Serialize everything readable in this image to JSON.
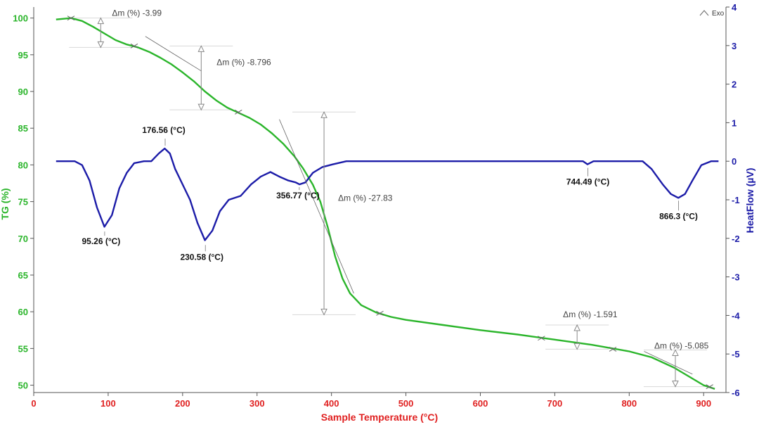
{
  "chart_data": {
    "type": "line",
    "xlabel": "Sample Temperature (°C)",
    "ylabel_left": "TG (%)",
    "ylabel_right": "HeatFlow (µV)",
    "legend_note": "Exo",
    "xlim": [
      0,
      930
    ],
    "ylim_left": [
      49,
      101.5
    ],
    "ylim_right": [
      -6,
      4
    ],
    "x_ticks": [
      "0",
      "100",
      "200",
      "300",
      "400",
      "500",
      "600",
      "700",
      "800",
      "900"
    ],
    "x_tick_values": [
      0,
      100,
      200,
      300,
      400,
      500,
      600,
      700,
      800,
      900
    ],
    "y_left_ticks": [
      "50",
      "55",
      "60",
      "65",
      "70",
      "75",
      "80",
      "85",
      "90",
      "95",
      "100"
    ],
    "y_left_tick_values": [
      50,
      55,
      60,
      65,
      70,
      75,
      80,
      85,
      90,
      95,
      100
    ],
    "y_right_ticks": [
      "4",
      "3",
      "2",
      "1",
      "0",
      "-1",
      "-2",
      "-3",
      "-4",
      "-5",
      "-6"
    ],
    "y_right_tick_values": [
      4,
      3,
      2,
      1,
      0,
      -1,
      -2,
      -3,
      -4,
      -5,
      -6
    ],
    "colors": {
      "tg": "#2bb52b",
      "hf": "#1c1ca8",
      "x_axis": "#e02020"
    },
    "series": [
      {
        "name": "TG (%)",
        "axis": "left",
        "points": [
          [
            30,
            99.8
          ],
          [
            50,
            100
          ],
          [
            65,
            99.6
          ],
          [
            80,
            98.8
          ],
          [
            95,
            97.9
          ],
          [
            110,
            97
          ],
          [
            125,
            96.4
          ],
          [
            140,
            96
          ],
          [
            155,
            95.4
          ],
          [
            170,
            94.6
          ],
          [
            185,
            93.7
          ],
          [
            200,
            92.6
          ],
          [
            215,
            91.4
          ],
          [
            230,
            90
          ],
          [
            245,
            88.8
          ],
          [
            260,
            87.8
          ],
          [
            275,
            87.1
          ],
          [
            290,
            86.4
          ],
          [
            305,
            85.5
          ],
          [
            320,
            84.3
          ],
          [
            335,
            82.9
          ],
          [
            350,
            81.2
          ],
          [
            362,
            79.5
          ],
          [
            375,
            77.3
          ],
          [
            385,
            75
          ],
          [
            395,
            71.5
          ],
          [
            405,
            67.5
          ],
          [
            415,
            64.5
          ],
          [
            425,
            62.5
          ],
          [
            440,
            60.9
          ],
          [
            460,
            59.9
          ],
          [
            480,
            59.3
          ],
          [
            500,
            58.9
          ],
          [
            550,
            58.2
          ],
          [
            600,
            57.5
          ],
          [
            650,
            56.9
          ],
          [
            700,
            56.2
          ],
          [
            750,
            55.5
          ],
          [
            800,
            54.6
          ],
          [
            830,
            53.8
          ],
          [
            860,
            52.4
          ],
          [
            880,
            51.2
          ],
          [
            900,
            50
          ],
          [
            915,
            49.5
          ]
        ]
      },
      {
        "name": "HeatFlow (µV)",
        "axis": "right",
        "points": [
          [
            30,
            0
          ],
          [
            55,
            0
          ],
          [
            65,
            -0.1
          ],
          [
            75,
            -0.5
          ],
          [
            85,
            -1.2
          ],
          [
            95,
            -1.7
          ],
          [
            105,
            -1.4
          ],
          [
            115,
            -0.7
          ],
          [
            125,
            -0.3
          ],
          [
            135,
            -0.05
          ],
          [
            148,
            0
          ],
          [
            158,
            0
          ],
          [
            168,
            0.2
          ],
          [
            176,
            0.33
          ],
          [
            183,
            0.2
          ],
          [
            190,
            -0.2
          ],
          [
            200,
            -0.6
          ],
          [
            210,
            -1
          ],
          [
            220,
            -1.6
          ],
          [
            230,
            -2.05
          ],
          [
            240,
            -1.8
          ],
          [
            250,
            -1.3
          ],
          [
            262,
            -1
          ],
          [
            278,
            -0.9
          ],
          [
            292,
            -0.6
          ],
          [
            305,
            -0.4
          ],
          [
            318,
            -0.28
          ],
          [
            330,
            -0.4
          ],
          [
            342,
            -0.5
          ],
          [
            352,
            -0.55
          ],
          [
            357,
            -0.6
          ],
          [
            365,
            -0.55
          ],
          [
            375,
            -0.3
          ],
          [
            388,
            -0.15
          ],
          [
            402,
            -0.08
          ],
          [
            420,
            0
          ],
          [
            500,
            0
          ],
          [
            720,
            0
          ],
          [
            738,
            0
          ],
          [
            744,
            -0.08
          ],
          [
            752,
            0
          ],
          [
            800,
            0
          ],
          [
            818,
            0
          ],
          [
            830,
            -0.2
          ],
          [
            845,
            -0.6
          ],
          [
            856,
            -0.85
          ],
          [
            866,
            -0.95
          ],
          [
            875,
            -0.85
          ],
          [
            885,
            -0.5
          ],
          [
            897,
            -0.1
          ],
          [
            910,
            0
          ],
          [
            920,
            0
          ]
        ]
      }
    ],
    "peak_annotations": [
      {
        "label": "95.26 (°C)",
        "x": 95.26,
        "hf": -1.75,
        "label_dx": -5,
        "label_dy": 22
      },
      {
        "label": "176.56 (°C)",
        "x": 176.56,
        "hf": 0.33,
        "label_dx": -2,
        "label_dy": -22
      },
      {
        "label": "230.58 (°C)",
        "x": 230.58,
        "hf": -2.1,
        "label_dx": -5,
        "label_dy": 25
      },
      {
        "label": "356.77 (°C)",
        "x": 356.77,
        "hf": -0.6,
        "label_dx": -2,
        "label_dy": 20
      },
      {
        "label": "744.49 (°C)",
        "x": 744.49,
        "hf": -0.1,
        "label_dx": 0,
        "label_dy": 28
      },
      {
        "label": "866.3 (°C)",
        "x": 866.3,
        "hf": -0.95,
        "label_dx": 0,
        "label_dy": 30
      }
    ],
    "mass_losses": [
      {
        "label": "Δm (%) -3.99",
        "x": 90,
        "tg_top": 100,
        "tg_bottom": 96
      },
      {
        "label": "Δm (%) -8.796",
        "x": 225,
        "tg_top": 96.2,
        "tg_bottom": 87.5
      },
      {
        "label": "Δm (%) -27.83",
        "x": 390,
        "tg_top": 87.2,
        "tg_bottom": 59.6
      },
      {
        "label": "Δm (%) -1.591",
        "x": 730,
        "tg_top": 58.2,
        "tg_bottom": 54.9
      },
      {
        "label": "Δm (%) -5.085",
        "x": 862,
        "tg_top": 54.8,
        "tg_bottom": 49.8
      }
    ]
  }
}
